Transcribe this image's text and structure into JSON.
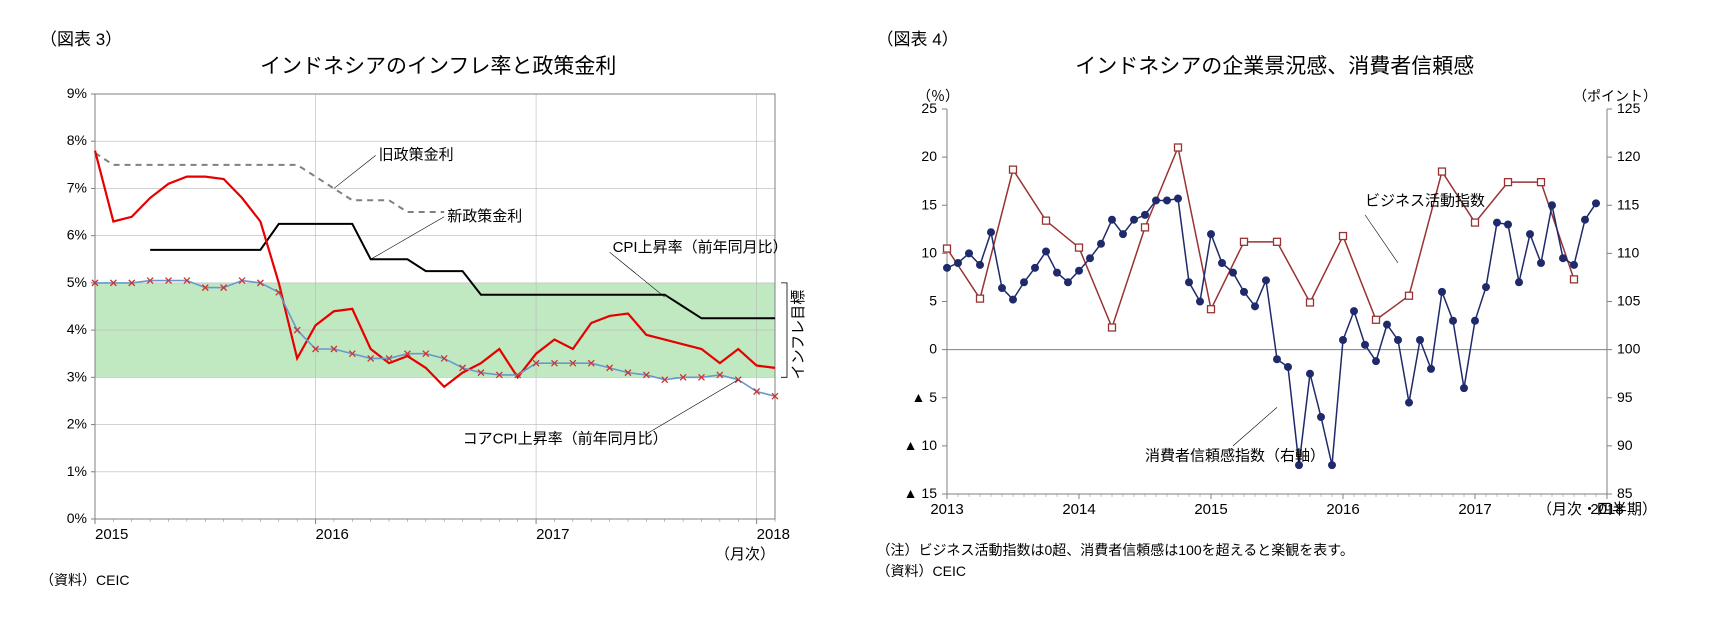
{
  "chart3": {
    "fig_label": "（図表 3）",
    "title": "インドネシアのインフレ率と政策金利",
    "source": "（資料）CEIC",
    "x_label": "（月次）",
    "x_ticks": [
      "2015",
      "2016",
      "2017",
      "2018"
    ],
    "y_ticks": [
      "0%",
      "1%",
      "2%",
      "3%",
      "4%",
      "5%",
      "6%",
      "7%",
      "8%",
      "9%"
    ],
    "ylim": [
      0,
      9
    ],
    "band_lo": 3,
    "band_hi": 5,
    "band_color": "#c1e9c1",
    "grid_color": "#b8b8b8",
    "axis_color": "#808080",
    "annotations": {
      "old_rate": "旧政策金利",
      "new_rate": "新政策金利",
      "cpi": "CPI上昇率（前年同月比）",
      "core": "コアCPI上昇率（前年同月比）",
      "target": "インフレ目標"
    },
    "old_rate": {
      "color": "#808080",
      "dash": "6,5",
      "width": 2,
      "y": [
        7.75,
        7.5,
        7.5,
        7.5,
        7.5,
        7.5,
        7.5,
        7.5,
        7.5,
        7.5,
        7.5,
        7.5,
        7.25,
        7.0,
        6.75,
        6.75,
        6.75,
        6.5,
        6.5,
        6.5
      ]
    },
    "new_rate": {
      "color": "#000000",
      "width": 2,
      "y": [
        null,
        null,
        null,
        5.7,
        5.7,
        5.7,
        5.7,
        5.7,
        5.7,
        5.7,
        6.25,
        6.25,
        6.25,
        6.25,
        6.25,
        5.5,
        5.5,
        5.5,
        5.25,
        5.25,
        5.25,
        4.75,
        4.75,
        4.75,
        4.75,
        4.75,
        4.75,
        4.75,
        4.75,
        4.75,
        4.75,
        4.75,
        4.5,
        4.25,
        4.25,
        4.25,
        4.25,
        4.25
      ]
    },
    "cpi": {
      "color": "#e60000",
      "width": 2.2,
      "y": [
        7.8,
        6.3,
        6.4,
        6.8,
        7.1,
        7.25,
        7.25,
        7.2,
        6.8,
        6.3,
        5.0,
        3.4,
        4.1,
        4.4,
        4.45,
        3.6,
        3.3,
        3.45,
        3.2,
        2.8,
        3.1,
        3.3,
        3.6,
        3.0,
        3.5,
        3.8,
        3.6,
        4.15,
        4.3,
        4.35,
        3.9,
        3.8,
        3.7,
        3.6,
        3.3,
        3.6,
        3.25,
        3.2
      ]
    },
    "core": {
      "color": "#6699cc",
      "width": 1.6,
      "marker": "x",
      "marker_color": "#cc3333",
      "y": [
        5.0,
        5.0,
        5.0,
        5.05,
        5.05,
        5.05,
        4.9,
        4.9,
        5.05,
        5.0,
        4.8,
        4.0,
        3.6,
        3.6,
        3.5,
        3.4,
        3.4,
        3.5,
        3.5,
        3.4,
        3.2,
        3.1,
        3.05,
        3.05,
        3.3,
        3.3,
        3.3,
        3.3,
        3.2,
        3.1,
        3.05,
        2.95,
        3.0,
        3.0,
        3.05,
        2.95,
        2.7,
        2.6
      ]
    }
  },
  "chart4": {
    "fig_label": "（図表 4）",
    "title": "インドネシアの企業景況感、消費者信頼感",
    "note": "（注）ビジネス活動指数は0超、消費者信頼感は100を超えると楽観を表す。",
    "source": "（資料）CEIC",
    "x_label": "（月次・四半期）",
    "x_ticks": [
      "2013",
      "2014",
      "2015",
      "2016",
      "2017",
      "2018"
    ],
    "yL_label": "（％）",
    "yR_label": "（ポイント）",
    "yL_ticks": [
      "▲ 15",
      "▲ 10",
      "▲ 5",
      "0",
      "5",
      "10",
      "15",
      "20",
      "25"
    ],
    "yR_ticks": [
      "85",
      "90",
      "95",
      "100",
      "105",
      "110",
      "115",
      "120",
      "125"
    ],
    "yL_lim": [
      -15,
      25
    ],
    "yR_lim": [
      85,
      125
    ],
    "zero_color": "#808080",
    "axis_color": "#808080",
    "annotations": {
      "biz": "ビジネス活動指数",
      "cons": "消費者信頼感指数（右軸）"
    },
    "biz": {
      "color": "#993333",
      "width": 1.5,
      "marker": "square",
      "x": [
        0,
        3,
        6,
        9,
        12,
        15,
        18,
        21,
        24,
        27,
        30,
        33,
        36,
        39,
        42,
        45,
        48,
        51,
        54,
        57
      ],
      "y": [
        10.5,
        5.3,
        18.7,
        13.4,
        10.6,
        2.3,
        12.7,
        21.0,
        4.2,
        11.2,
        11.2,
        4.9,
        11.8,
        3.1,
        5.6,
        18.5,
        13.2,
        17.4,
        17.4,
        7.3
      ]
    },
    "cons": {
      "color": "#1f2a6b",
      "width": 1.5,
      "marker": "circle",
      "x": [
        0,
        1,
        2,
        3,
        4,
        5,
        6,
        7,
        8,
        9,
        10,
        11,
        12,
        13,
        14,
        15,
        16,
        17,
        18,
        19,
        20,
        21,
        22,
        23,
        24,
        25,
        26,
        27,
        28,
        29,
        30,
        31,
        32,
        33,
        34,
        35,
        36,
        37,
        38,
        39,
        40,
        41,
        42,
        43,
        44,
        45,
        46,
        47,
        48,
        49,
        50,
        51,
        52,
        53,
        54,
        55,
        56,
        57,
        58,
        59
      ],
      "y": [
        108.5,
        109,
        110,
        108.8,
        112.2,
        106.4,
        105.2,
        107,
        108.5,
        110.2,
        108,
        107,
        108.2,
        109.5,
        111,
        113.5,
        112,
        113.5,
        114,
        115.5,
        115.5,
        115.7,
        107,
        105,
        112,
        109,
        108,
        106,
        104.5,
        107.2,
        99,
        98.2,
        88,
        97.5,
        93,
        88,
        101,
        104,
        100.5,
        98.8,
        102.6,
        101,
        94.5,
        101,
        98,
        106,
        103,
        96,
        103,
        106.5,
        113.2,
        113,
        107,
        112,
        109,
        115,
        109.5,
        108.8,
        113.5,
        115.2
      ]
    }
  }
}
